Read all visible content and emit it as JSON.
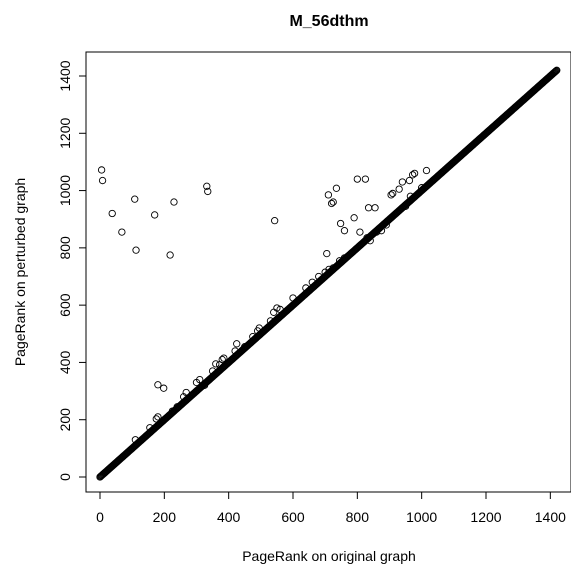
{
  "chart_data": {
    "type": "scatter",
    "title": "M_56dthm",
    "xlabel": "PageRank on original graph",
    "ylabel": "PageRank on perturbed graph",
    "xlim": [
      0,
      1420
    ],
    "ylim": [
      0,
      1420
    ],
    "x_ticks": [
      0,
      200,
      400,
      600,
      800,
      1000,
      1200,
      1400
    ],
    "y_ticks": [
      0,
      200,
      400,
      600,
      800,
      1000,
      1200,
      1400
    ],
    "x_tick_labels": [
      "0",
      "200",
      "400",
      "600",
      "800",
      "1000",
      "1200",
      "1400"
    ],
    "y_tick_labels": [
      "0",
      "200",
      "400",
      "600",
      "800",
      "1000",
      "1200",
      "1400"
    ],
    "grid": false,
    "marker": "open-circle",
    "color": "#000000",
    "diagonal_band": {
      "description": "dense run of points along y = x",
      "x_range": [
        0,
        1420
      ],
      "step": 2
    },
    "points": [
      [
        5,
        1072
      ],
      [
        8,
        1035
      ],
      [
        38,
        920
      ],
      [
        68,
        855
      ],
      [
        108,
        970
      ],
      [
        112,
        792
      ],
      [
        170,
        915
      ],
      [
        218,
        775
      ],
      [
        230,
        960
      ],
      [
        332,
        1015
      ],
      [
        335,
        997
      ],
      [
        543,
        895
      ],
      [
        180,
        322
      ],
      [
        198,
        310
      ],
      [
        110,
        130
      ],
      [
        175,
        203
      ],
      [
        180,
        210
      ],
      [
        155,
        172
      ],
      [
        225,
        230
      ],
      [
        240,
        245
      ],
      [
        260,
        280
      ],
      [
        268,
        295
      ],
      [
        300,
        330
      ],
      [
        310,
        340
      ],
      [
        325,
        320
      ],
      [
        350,
        370
      ],
      [
        360,
        395
      ],
      [
        372,
        392
      ],
      [
        380,
        410
      ],
      [
        385,
        415
      ],
      [
        420,
        440
      ],
      [
        425,
        465
      ],
      [
        450,
        455
      ],
      [
        475,
        490
      ],
      [
        490,
        510
      ],
      [
        495,
        520
      ],
      [
        530,
        545
      ],
      [
        540,
        575
      ],
      [
        550,
        590
      ],
      [
        560,
        585
      ],
      [
        600,
        625
      ],
      [
        640,
        660
      ],
      [
        660,
        680
      ],
      [
        680,
        700
      ],
      [
        700,
        715
      ],
      [
        712,
        725
      ],
      [
        725,
        730
      ],
      [
        745,
        755
      ],
      [
        760,
        765
      ],
      [
        705,
        780
      ],
      [
        710,
        985
      ],
      [
        720,
        955
      ],
      [
        725,
        960
      ],
      [
        735,
        1008
      ],
      [
        748,
        885
      ],
      [
        760,
        860
      ],
      [
        790,
        905
      ],
      [
        800,
        1040
      ],
      [
        808,
        855
      ],
      [
        825,
        1040
      ],
      [
        830,
        835
      ],
      [
        835,
        940
      ],
      [
        840,
        825
      ],
      [
        855,
        940
      ],
      [
        860,
        855
      ],
      [
        875,
        860
      ],
      [
        890,
        880
      ],
      [
        905,
        985
      ],
      [
        910,
        990
      ],
      [
        930,
        1005
      ],
      [
        940,
        1030
      ],
      [
        950,
        945
      ],
      [
        962,
        1035
      ],
      [
        965,
        980
      ],
      [
        972,
        1055
      ],
      [
        978,
        1060
      ],
      [
        1015,
        1070
      ],
      [
        1000,
        1010
      ]
    ]
  }
}
